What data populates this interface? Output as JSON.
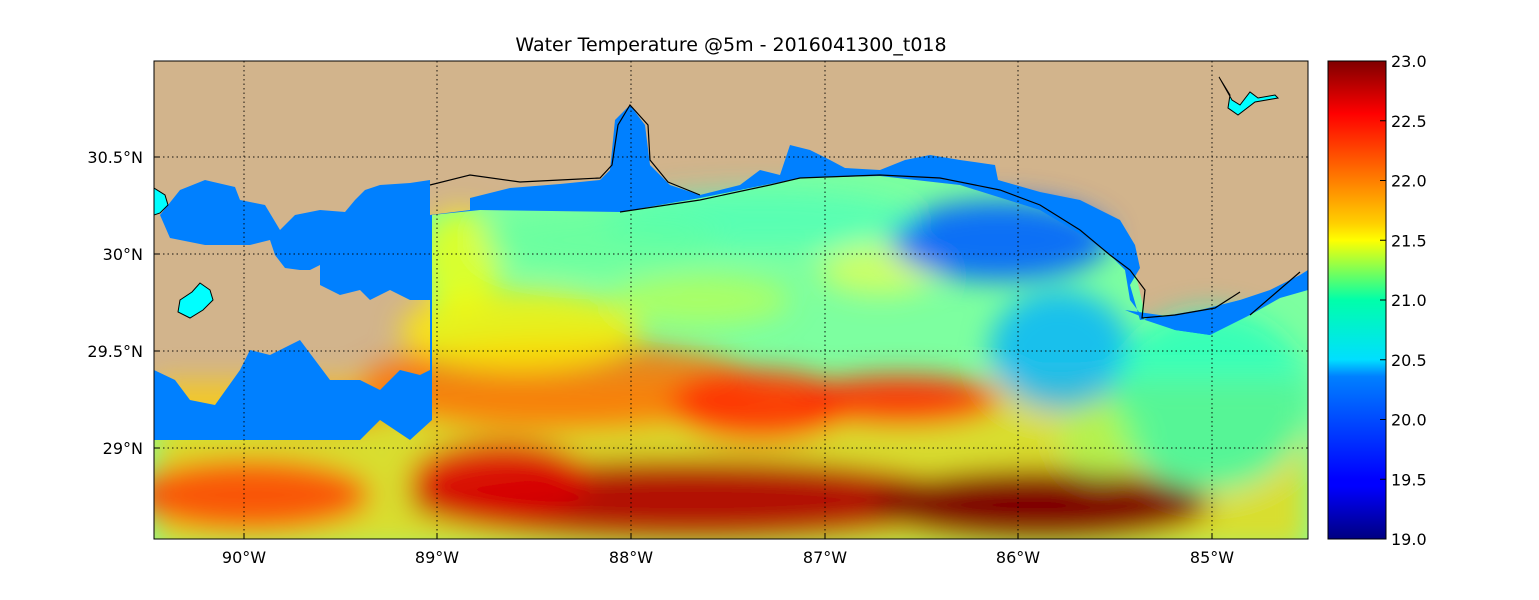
{
  "title": "Water Temperature @5m - 2016041300_t018",
  "map": {
    "lon_range": [
      -90.5,
      -84.5
    ],
    "lat_range": [
      28.55,
      31.0
    ],
    "lon_ticks": [
      {
        "value": -90,
        "label": "90°W"
      },
      {
        "value": -89,
        "label": "89°W"
      },
      {
        "value": -88,
        "label": "88°W"
      },
      {
        "value": -87,
        "label": "87°W"
      },
      {
        "value": -86,
        "label": "86°W"
      },
      {
        "value": -85,
        "label": "85°W"
      }
    ],
    "lat_ticks": [
      {
        "value": 29.0,
        "label": "29°N"
      },
      {
        "value": 29.5,
        "label": "29.5°N"
      },
      {
        "value": 30.0,
        "label": "30°N"
      },
      {
        "value": 30.5,
        "label": "30.5°N"
      }
    ],
    "grid": true,
    "colors": {
      "land": "#d2b48c",
      "water_mask": "#0080ff",
      "lake": "#00ffff",
      "coastline": "#000000"
    }
  },
  "colorbar": {
    "min": 19.0,
    "max": 23.0,
    "colormap": "jet",
    "ticks": [
      {
        "value": 19.0,
        "label": "19.0"
      },
      {
        "value": 19.5,
        "label": "19.5"
      },
      {
        "value": 20.0,
        "label": "20.0"
      },
      {
        "value": 20.5,
        "label": "20.5"
      },
      {
        "value": 21.0,
        "label": "21.0"
      },
      {
        "value": 21.5,
        "label": "21.5"
      },
      {
        "value": 22.0,
        "label": "22.0"
      },
      {
        "value": 22.5,
        "label": "22.5"
      },
      {
        "value": 23.0,
        "label": "23.0"
      }
    ]
  }
}
